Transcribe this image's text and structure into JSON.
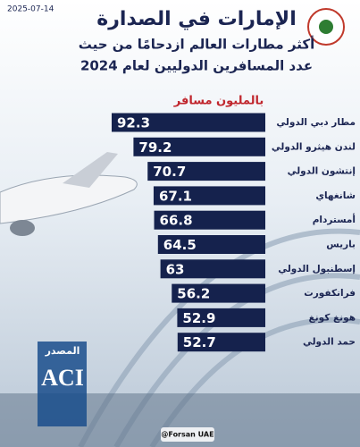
{
  "chart_data": {
    "type": "bar",
    "orientation": "horizontal",
    "title": "الإمارات في الصدارة",
    "subtitle_lines": [
      "أكثر مطارات العالم ازدحامًا من حيث",
      "عدد المسافرين الدوليين لعام 2024"
    ],
    "unit_label": "بالمليون مسافر",
    "date": "2025-07-14",
    "source_label": "المصدر",
    "source": "ACI",
    "handle": "@Forsan UAE",
    "categories": [
      "مطار دبي الدولي",
      "لندن هيثرو الدولي",
      "إنتشون الدولي",
      "شانغهاي",
      "أمستردام",
      "باريس",
      "إسطنبول الدولي",
      "فرانكفورت",
      "هونغ كونغ",
      "حمد الدولي"
    ],
    "values": [
      92.3,
      79.2,
      70.7,
      67.1,
      66.8,
      64.5,
      63,
      56.2,
      52.9,
      52.7
    ],
    "color": "#15224d"
  }
}
